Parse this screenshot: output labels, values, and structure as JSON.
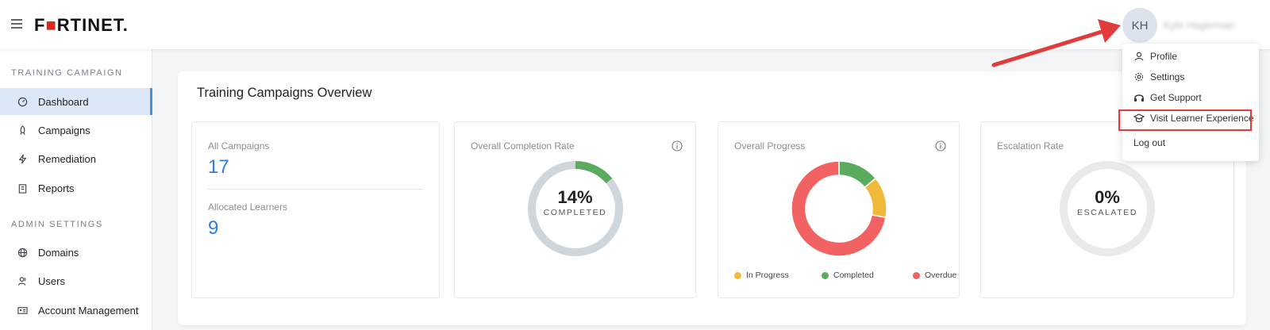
{
  "header": {
    "logo_text_pre": "F",
    "logo_text_o": "■",
    "logo_text_post": "RTINET.",
    "avatar_initials": "KH",
    "username": "Kyle Hagerman"
  },
  "sidebar": {
    "section1_title": "TRAINING CAMPAIGN",
    "section2_title": "ADMIN SETTINGS",
    "items": [
      {
        "label": "Dashboard",
        "icon": "dashboard-icon"
      },
      {
        "label": "Campaigns",
        "icon": "rocket-icon"
      },
      {
        "label": "Remediation",
        "icon": "bolt-icon"
      },
      {
        "label": "Reports",
        "icon": "clipboard-icon"
      },
      {
        "label": "Domains",
        "icon": "globe-icon"
      },
      {
        "label": "Users",
        "icon": "users-icon"
      },
      {
        "label": "Account Management",
        "icon": "id-card-icon"
      }
    ]
  },
  "overview": {
    "title": "Training Campaigns Overview",
    "all_campaigns_label": "All Campaigns",
    "all_campaigns_value": "17",
    "allocated_learners_label": "Allocated Learners",
    "allocated_learners_value": "9",
    "completion_label": "Overall Completion Rate",
    "completion_pct_text": "14%",
    "completion_sub": "COMPLETED",
    "completion_value": 0.14,
    "progress_label": "Overall Progress",
    "escalation_label": "Escalation Rate",
    "escalation_pct_text": "0%",
    "escalation_sub": "ESCALATED",
    "escalation_value": 0
  },
  "progress_chart": {
    "legend": [
      {
        "label": "In Progress",
        "color": "#f0b93a"
      },
      {
        "label": "Completed",
        "color": "#5aab5e"
      },
      {
        "label": "Overdue",
        "color": "#f26262"
      }
    ]
  },
  "chart_data": {
    "type": "pie",
    "title": "Overall Progress",
    "categories": [
      "Completed",
      "In Progress",
      "Overdue"
    ],
    "values": [
      14,
      14,
      72
    ],
    "colors": [
      "#5aab5e",
      "#f0b93a",
      "#f26262"
    ]
  },
  "dropdown": {
    "items": [
      {
        "label": "Profile",
        "icon": "user-icon"
      },
      {
        "label": "Settings",
        "icon": "gear-icon"
      },
      {
        "label": "Get Support",
        "icon": "headset-icon"
      },
      {
        "label": "Visit Learner Experience",
        "icon": "graduation-cap-icon"
      },
      {
        "label": "Log out",
        "icon": ""
      }
    ]
  },
  "colors": {
    "accent_blue": "#2c7fe0",
    "highlight_red": "#e23b3b",
    "ring_grey": "#cfd7dc"
  }
}
